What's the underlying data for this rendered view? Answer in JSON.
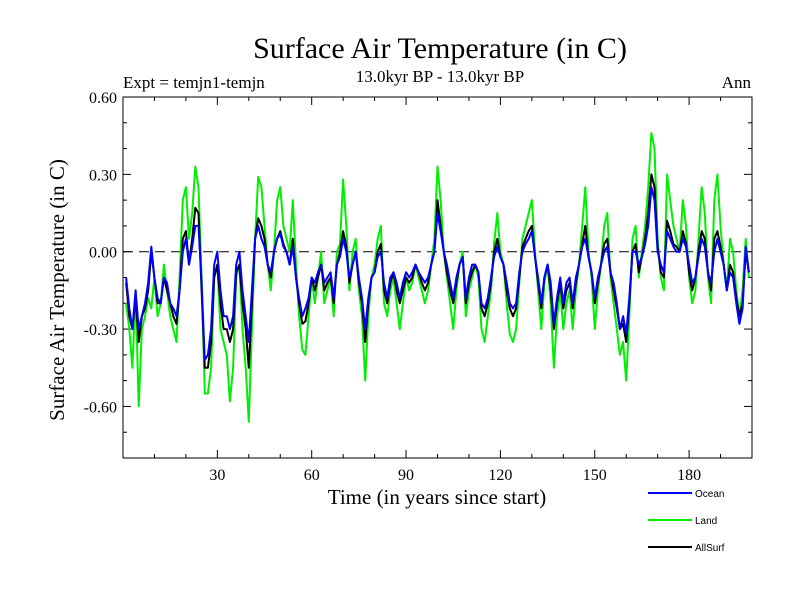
{
  "chart_data": {
    "type": "line",
    "title": "Surface Air Temperature (in C)",
    "subtitle": "13.0kyr BP - 13.0kyr BP",
    "left_label": "Expt = temjn1-temjn",
    "right_label": "Ann",
    "xlabel": "Time (in years since start)",
    "ylabel": "Surface Air Temperature (in C)",
    "xlim": [
      0,
      200
    ],
    "ylim": [
      -0.8,
      0.6
    ],
    "xticks": [
      30,
      60,
      90,
      120,
      150,
      180
    ],
    "xtick_labels": [
      "30",
      "60",
      "90",
      "120",
      "150",
      "180"
    ],
    "yticks": [
      -0.6,
      -0.3,
      0.0,
      0.3,
      0.6
    ],
    "ytick_labels": [
      "-0.60",
      "-0.30",
      "0.00",
      "0.30",
      "0.60"
    ],
    "zero_line": 0.0,
    "legend_position": "bottom-right",
    "series": [
      {
        "name": "Land",
        "color": "#00ee00",
        "x": [
          1,
          2,
          3,
          4,
          5,
          6,
          7,
          8,
          9,
          10,
          11,
          12,
          13,
          14,
          15,
          16,
          17,
          18,
          19,
          20,
          21,
          22,
          23,
          24,
          25,
          26,
          27,
          28,
          29,
          30,
          31,
          32,
          33,
          34,
          35,
          36,
          37,
          38,
          39,
          40,
          41,
          42,
          43,
          44,
          45,
          46,
          47,
          48,
          49,
          50,
          51,
          52,
          53,
          54,
          55,
          56,
          57,
          58,
          59,
          60,
          61,
          62,
          63,
          64,
          65,
          66,
          67,
          68,
          69,
          70,
          71,
          72,
          73,
          74,
          75,
          76,
          77,
          78,
          79,
          80,
          81,
          82,
          83,
          84,
          85,
          86,
          87,
          88,
          89,
          90,
          91,
          92,
          93,
          94,
          95,
          96,
          97,
          98,
          99,
          100,
          101,
          102,
          103,
          104,
          105,
          106,
          107,
          108,
          109,
          110,
          111,
          112,
          113,
          114,
          115,
          116,
          117,
          118,
          119,
          120,
          121,
          122,
          123,
          124,
          125,
          126,
          127,
          128,
          129,
          130,
          131,
          132,
          133,
          134,
          135,
          136,
          137,
          138,
          139,
          140,
          141,
          142,
          143,
          144,
          145,
          146,
          147,
          148,
          149,
          150,
          151,
          152,
          153,
          154,
          155,
          156,
          157,
          158,
          159,
          160,
          161,
          162,
          163,
          164,
          165,
          166,
          167,
          168,
          169,
          170,
          171,
          172,
          173,
          174,
          175,
          176,
          177,
          178,
          179,
          180,
          181,
          182,
          183,
          184,
          185,
          186,
          187,
          188,
          189,
          190,
          191,
          192,
          193,
          194,
          195,
          196,
          197,
          198,
          199
        ],
        "values": [
          -0.2,
          -0.3,
          -0.45,
          -0.15,
          -0.6,
          -0.3,
          -0.25,
          -0.18,
          -0.22,
          -0.1,
          -0.25,
          -0.2,
          -0.05,
          -0.15,
          -0.25,
          -0.3,
          -0.35,
          -0.1,
          0.2,
          0.25,
          0.05,
          0.15,
          0.33,
          0.25,
          -0.1,
          -0.55,
          -0.55,
          -0.45,
          -0.1,
          -0.05,
          -0.3,
          -0.35,
          -0.4,
          -0.58,
          -0.45,
          -0.1,
          -0.05,
          -0.3,
          -0.45,
          -0.66,
          -0.3,
          0.05,
          0.29,
          0.25,
          0.1,
          -0.05,
          -0.15,
          0.0,
          0.2,
          0.25,
          0.1,
          0.05,
          0.0,
          0.2,
          -0.05,
          -0.25,
          -0.38,
          -0.4,
          -0.25,
          -0.1,
          -0.2,
          -0.1,
          0.0,
          -0.2,
          -0.15,
          -0.1,
          -0.25,
          0.0,
          0.03,
          0.28,
          0.1,
          -0.15,
          0.0,
          0.05,
          -0.15,
          -0.25,
          -0.5,
          -0.25,
          -0.1,
          -0.05,
          0.05,
          0.1,
          -0.2,
          -0.25,
          -0.15,
          -0.1,
          -0.2,
          -0.3,
          -0.2,
          -0.1,
          -0.15,
          -0.12,
          -0.05,
          -0.1,
          -0.15,
          -0.2,
          -0.15,
          -0.05,
          0.05,
          0.33,
          0.2,
          0.0,
          -0.1,
          -0.2,
          -0.3,
          -0.15,
          -0.05,
          0.0,
          -0.25,
          -0.15,
          -0.1,
          -0.05,
          -0.1,
          -0.3,
          -0.35,
          -0.25,
          -0.15,
          0.03,
          0.15,
          0.0,
          -0.05,
          -0.2,
          -0.32,
          -0.35,
          -0.3,
          -0.12,
          0.05,
          0.1,
          0.15,
          0.2,
          0.0,
          -0.15,
          -0.3,
          -0.12,
          -0.05,
          -0.2,
          -0.45,
          -0.25,
          -0.15,
          -0.3,
          -0.2,
          -0.15,
          -0.3,
          -0.15,
          -0.05,
          0.1,
          0.25,
          0.0,
          -0.1,
          -0.3,
          -0.15,
          -0.05,
          0.1,
          0.15,
          -0.1,
          -0.2,
          -0.3,
          -0.4,
          -0.35,
          -0.5,
          -0.25,
          0.05,
          0.1,
          -0.1,
          0.0,
          0.1,
          0.25,
          0.46,
          0.4,
          0.05,
          -0.1,
          -0.15,
          0.3,
          0.2,
          0.1,
          0.05,
          0.0,
          0.2,
          0.1,
          -0.1,
          -0.2,
          -0.15,
          0.05,
          0.25,
          0.15,
          -0.1,
          -0.2,
          0.2,
          0.3,
          0.1,
          -0.05,
          -0.15,
          0.05,
          0.0,
          -0.15,
          -0.25,
          -0.15,
          0.05,
          -0.1
        ]
      },
      {
        "name": "AllSurf",
        "color": "#000000",
        "x": [
          1,
          2,
          3,
          4,
          5,
          6,
          7,
          8,
          9,
          10,
          11,
          12,
          13,
          14,
          15,
          16,
          17,
          18,
          19,
          20,
          21,
          22,
          23,
          24,
          25,
          26,
          27,
          28,
          29,
          30,
          31,
          32,
          33,
          34,
          35,
          36,
          37,
          38,
          39,
          40,
          41,
          42,
          43,
          44,
          45,
          46,
          47,
          48,
          49,
          50,
          51,
          52,
          53,
          54,
          55,
          56,
          57,
          58,
          59,
          60,
          61,
          62,
          63,
          64,
          65,
          66,
          67,
          68,
          69,
          70,
          71,
          72,
          73,
          74,
          75,
          76,
          77,
          78,
          79,
          80,
          81,
          82,
          83,
          84,
          85,
          86,
          87,
          88,
          89,
          90,
          91,
          92,
          93,
          94,
          95,
          96,
          97,
          98,
          99,
          100,
          101,
          102,
          103,
          104,
          105,
          106,
          107,
          108,
          109,
          110,
          111,
          112,
          113,
          114,
          115,
          116,
          117,
          118,
          119,
          120,
          121,
          122,
          123,
          124,
          125,
          126,
          127,
          128,
          129,
          130,
          131,
          132,
          133,
          134,
          135,
          136,
          137,
          138,
          139,
          140,
          141,
          142,
          143,
          144,
          145,
          146,
          147,
          148,
          149,
          150,
          151,
          152,
          153,
          154,
          155,
          156,
          157,
          158,
          159,
          160,
          161,
          162,
          163,
          164,
          165,
          166,
          167,
          168,
          169,
          170,
          171,
          172,
          173,
          174,
          175,
          176,
          177,
          178,
          179,
          180,
          181,
          182,
          183,
          184,
          185,
          186,
          187,
          188,
          189,
          190,
          191,
          192,
          193,
          194,
          195,
          196,
          197,
          198,
          199
        ],
        "values": [
          -0.12,
          -0.25,
          -0.3,
          -0.18,
          -0.35,
          -0.25,
          -0.22,
          -0.15,
          0.0,
          -0.1,
          -0.2,
          -0.2,
          -0.1,
          -0.15,
          -0.2,
          -0.25,
          -0.28,
          -0.15,
          0.05,
          0.08,
          -0.05,
          0.05,
          0.17,
          0.15,
          -0.15,
          -0.45,
          -0.45,
          -0.35,
          -0.1,
          -0.05,
          -0.2,
          -0.3,
          -0.3,
          -0.35,
          -0.3,
          -0.08,
          -0.05,
          -0.2,
          -0.3,
          -0.45,
          -0.2,
          0.05,
          0.13,
          0.1,
          0.05,
          -0.05,
          -0.1,
          0.0,
          0.05,
          0.08,
          0.03,
          0.0,
          -0.05,
          0.05,
          -0.1,
          -0.2,
          -0.28,
          -0.27,
          -0.2,
          -0.1,
          -0.15,
          -0.1,
          -0.05,
          -0.15,
          -0.12,
          -0.1,
          -0.2,
          -0.05,
          0.0,
          0.08,
          0.02,
          -0.12,
          -0.05,
          0.0,
          -0.12,
          -0.2,
          -0.35,
          -0.2,
          -0.1,
          -0.08,
          0.0,
          0.03,
          -0.15,
          -0.2,
          -0.12,
          -0.08,
          -0.15,
          -0.2,
          -0.15,
          -0.1,
          -0.12,
          -0.1,
          -0.05,
          -0.08,
          -0.12,
          -0.15,
          -0.12,
          -0.05,
          0.0,
          0.2,
          0.1,
          0.0,
          -0.08,
          -0.15,
          -0.2,
          -0.12,
          -0.05,
          -0.02,
          -0.2,
          -0.12,
          -0.08,
          -0.05,
          -0.08,
          -0.22,
          -0.25,
          -0.2,
          -0.12,
          0.0,
          0.05,
          -0.02,
          -0.05,
          -0.15,
          -0.22,
          -0.25,
          -0.22,
          -0.1,
          0.02,
          0.05,
          0.08,
          0.1,
          -0.02,
          -0.12,
          -0.22,
          -0.1,
          -0.05,
          -0.15,
          -0.3,
          -0.2,
          -0.12,
          -0.22,
          -0.15,
          -0.12,
          -0.22,
          -0.12,
          -0.05,
          0.03,
          0.1,
          -0.02,
          -0.08,
          -0.2,
          -0.12,
          -0.05,
          0.03,
          0.05,
          -0.08,
          -0.15,
          -0.22,
          -0.3,
          -0.28,
          -0.35,
          -0.2,
          0.0,
          0.03,
          -0.08,
          -0.02,
          0.05,
          0.15,
          0.3,
          0.25,
          0.02,
          -0.08,
          -0.1,
          0.12,
          0.08,
          0.03,
          0.02,
          0.0,
          0.08,
          0.03,
          -0.08,
          -0.15,
          -0.1,
          0.0,
          0.08,
          0.05,
          -0.08,
          -0.15,
          0.05,
          0.08,
          0.02,
          -0.05,
          -0.15,
          -0.05,
          -0.08,
          -0.18,
          -0.25,
          -0.2,
          0.0,
          -0.08
        ]
      },
      {
        "name": "Ocean",
        "color": "#0000ff",
        "x": [
          1,
          2,
          3,
          4,
          5,
          6,
          7,
          8,
          9,
          10,
          11,
          12,
          13,
          14,
          15,
          16,
          17,
          18,
          19,
          20,
          21,
          22,
          23,
          24,
          25,
          26,
          27,
          28,
          29,
          30,
          31,
          32,
          33,
          34,
          35,
          36,
          37,
          38,
          39,
          40,
          41,
          42,
          43,
          44,
          45,
          46,
          47,
          48,
          49,
          50,
          51,
          52,
          53,
          54,
          55,
          56,
          57,
          58,
          59,
          60,
          61,
          62,
          63,
          64,
          65,
          66,
          67,
          68,
          69,
          70,
          71,
          72,
          73,
          74,
          75,
          76,
          77,
          78,
          79,
          80,
          81,
          82,
          83,
          84,
          85,
          86,
          87,
          88,
          89,
          90,
          91,
          92,
          93,
          94,
          95,
          96,
          97,
          98,
          99,
          100,
          101,
          102,
          103,
          104,
          105,
          106,
          107,
          108,
          109,
          110,
          111,
          112,
          113,
          114,
          115,
          116,
          117,
          118,
          119,
          120,
          121,
          122,
          123,
          124,
          125,
          126,
          127,
          128,
          129,
          130,
          131,
          132,
          133,
          134,
          135,
          136,
          137,
          138,
          139,
          140,
          141,
          142,
          143,
          144,
          145,
          146,
          147,
          148,
          149,
          150,
          151,
          152,
          153,
          154,
          155,
          156,
          157,
          158,
          159,
          160,
          161,
          162,
          163,
          164,
          165,
          166,
          167,
          168,
          169,
          170,
          171,
          172,
          173,
          174,
          175,
          176,
          177,
          178,
          179,
          180,
          181,
          182,
          183,
          184,
          185,
          186,
          187,
          188,
          189,
          190,
          191,
          192,
          193,
          194,
          195,
          196,
          197,
          198,
          199
        ],
        "values": [
          -0.1,
          -0.22,
          -0.3,
          -0.15,
          -0.3,
          -0.25,
          -0.2,
          -0.12,
          0.02,
          -0.1,
          -0.18,
          -0.2,
          -0.1,
          -0.12,
          -0.2,
          -0.22,
          -0.25,
          -0.15,
          0.0,
          0.05,
          -0.05,
          0.02,
          0.1,
          0.1,
          -0.12,
          -0.42,
          -0.4,
          -0.3,
          -0.05,
          0.0,
          -0.15,
          -0.25,
          -0.25,
          -0.3,
          -0.25,
          -0.05,
          0.0,
          -0.15,
          -0.25,
          -0.35,
          -0.15,
          0.05,
          0.1,
          0.05,
          0.02,
          -0.05,
          -0.08,
          0.0,
          0.05,
          0.07,
          0.02,
          0.0,
          -0.05,
          0.02,
          -0.1,
          -0.18,
          -0.25,
          -0.22,
          -0.18,
          -0.1,
          -0.12,
          -0.08,
          -0.05,
          -0.12,
          -0.1,
          -0.08,
          -0.18,
          -0.05,
          -0.02,
          0.05,
          0.0,
          -0.1,
          -0.05,
          0.0,
          -0.1,
          -0.18,
          -0.3,
          -0.18,
          -0.1,
          -0.08,
          -0.02,
          0.0,
          -0.12,
          -0.18,
          -0.1,
          -0.08,
          -0.12,
          -0.18,
          -0.12,
          -0.08,
          -0.1,
          -0.08,
          -0.05,
          -0.08,
          -0.1,
          -0.12,
          -0.1,
          -0.05,
          0.0,
          0.15,
          0.08,
          0.0,
          -0.05,
          -0.12,
          -0.18,
          -0.1,
          -0.05,
          -0.02,
          -0.18,
          -0.1,
          -0.05,
          -0.05,
          -0.08,
          -0.2,
          -0.22,
          -0.18,
          -0.1,
          -0.02,
          0.02,
          -0.02,
          -0.05,
          -0.12,
          -0.2,
          -0.22,
          -0.2,
          -0.08,
          0.0,
          0.03,
          0.05,
          0.08,
          -0.02,
          -0.1,
          -0.2,
          -0.1,
          -0.05,
          -0.12,
          -0.28,
          -0.18,
          -0.1,
          -0.2,
          -0.12,
          -0.1,
          -0.2,
          -0.1,
          -0.05,
          0.02,
          0.05,
          -0.02,
          -0.08,
          -0.18,
          -0.1,
          -0.05,
          0.0,
          0.02,
          -0.08,
          -0.12,
          -0.2,
          -0.3,
          -0.25,
          -0.32,
          -0.18,
          0.0,
          0.0,
          -0.05,
          -0.02,
          0.03,
          0.1,
          0.25,
          0.2,
          0.0,
          -0.05,
          -0.08,
          0.08,
          0.05,
          0.02,
          0.0,
          0.0,
          0.05,
          0.02,
          -0.05,
          -0.12,
          -0.1,
          -0.02,
          0.05,
          0.02,
          -0.08,
          -0.12,
          0.0,
          0.05,
          0.0,
          -0.05,
          -0.15,
          -0.08,
          -0.1,
          -0.2,
          -0.28,
          -0.22,
          0.02,
          -0.08
        ]
      }
    ],
    "legend_order": [
      "Ocean",
      "Land",
      "AllSurf"
    ]
  }
}
